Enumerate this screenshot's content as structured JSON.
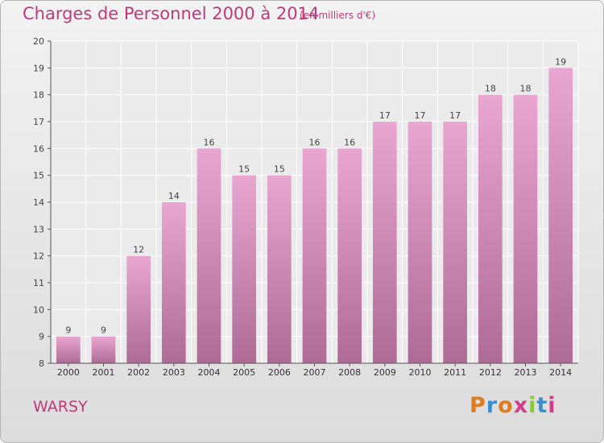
{
  "header": {
    "title": "Charges de Personnel 2000 à 2014",
    "subtitle": "(en milliers d'€)"
  },
  "footer": {
    "commune": "WARSY",
    "logo_text": "Proxiti"
  },
  "colors": {
    "title": "#c0397a",
    "bar_top": "#e8a6d0",
    "bar_bottom": "#ae6b95",
    "logo_letters": [
      "#e07b1f",
      "#3a8fd0",
      "#e07b1f",
      "#d63a8a",
      "#8cc63f",
      "#3a8fd0",
      "#d63a8a"
    ]
  },
  "chart_data": {
    "type": "bar",
    "title": "Charges de Personnel 2000 à 2014",
    "subtitle": "(en milliers d'€)",
    "categories": [
      "2000",
      "2001",
      "2002",
      "2003",
      "2004",
      "2005",
      "2006",
      "2007",
      "2008",
      "2009",
      "2010",
      "2011",
      "2012",
      "2013",
      "2014"
    ],
    "values": [
      9,
      9,
      12,
      14,
      16,
      15,
      15,
      16,
      16,
      17,
      17,
      17,
      18,
      18,
      19
    ],
    "ylim": [
      8,
      20
    ],
    "yticks": [
      8,
      9,
      10,
      11,
      12,
      13,
      14,
      15,
      16,
      17,
      18,
      19,
      20
    ],
    "grid": true,
    "xlabel": "",
    "ylabel": ""
  }
}
